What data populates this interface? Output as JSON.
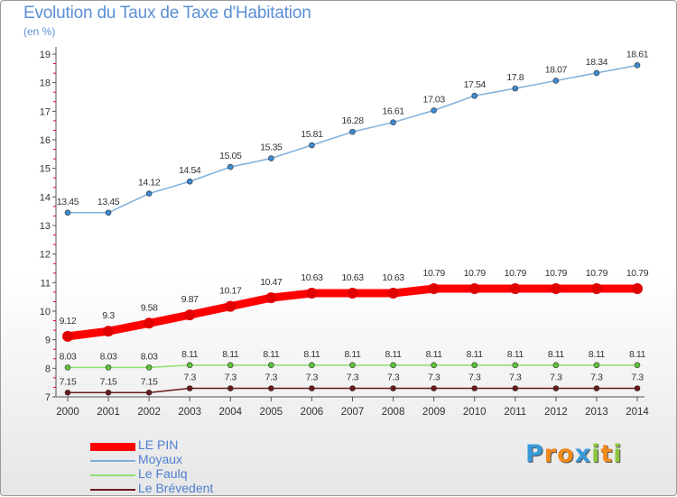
{
  "title": "Evolution du Taux de Taxe d'Habitation",
  "unit_label": "(en %)",
  "colors": {
    "title": "#5b8fd6",
    "axis": "#555555",
    "tick_red": "#e0002a"
  },
  "chart_data": {
    "type": "line",
    "x": [
      "2000",
      "2001",
      "2002",
      "2003",
      "2004",
      "2005",
      "2006",
      "2007",
      "2008",
      "2009",
      "2010",
      "2011",
      "2012",
      "2013",
      "2014"
    ],
    "ylim": [
      7,
      19
    ],
    "yticks": [
      "7",
      "8",
      "9",
      "10",
      "11",
      "12",
      "13",
      "14",
      "15",
      "16",
      "17",
      "18",
      "19"
    ],
    "grid": false,
    "legend_position": "bottom-left",
    "series": [
      {
        "name": "LE PIN",
        "color": "#ff0000",
        "marker": "#e00000",
        "width": 9,
        "values": [
          9.12,
          9.3,
          9.58,
          9.87,
          10.17,
          10.47,
          10.63,
          10.63,
          10.63,
          10.79,
          10.79,
          10.79,
          10.79,
          10.79,
          10.79
        ],
        "labels": [
          "9.12",
          "9.3",
          "9.58",
          "9.87",
          "10.17",
          "10.47",
          "10.63",
          "10.63",
          "10.63",
          "10.79",
          "10.79",
          "10.79",
          "10.79",
          "10.79",
          "10.79"
        ]
      },
      {
        "name": "Moyaux",
        "color": "#7fb0dc",
        "marker": "#3d8ad0",
        "width": 1.5,
        "values": [
          13.45,
          13.45,
          14.12,
          14.54,
          15.05,
          15.35,
          15.81,
          16.28,
          16.61,
          17.03,
          17.54,
          17.8,
          18.07,
          18.34,
          18.61
        ],
        "labels": [
          "13.45",
          "13.45",
          "14.12",
          "14.54",
          "15.05",
          "15.35",
          "15.81",
          "16.28",
          "16.61",
          "17.03",
          "17.54",
          "17.8",
          "18.07",
          "18.34",
          "18.61"
        ]
      },
      {
        "name": "Le Faulq",
        "color": "#8ee06a",
        "marker": "#5cc23a",
        "width": 1.5,
        "values": [
          8.03,
          8.03,
          8.03,
          8.11,
          8.11,
          8.11,
          8.11,
          8.11,
          8.11,
          8.11,
          8.11,
          8.11,
          8.11,
          8.11,
          8.11
        ],
        "labels": [
          "8.03",
          "8.03",
          "8.03",
          "8.11",
          "8.11",
          "8.11",
          "8.11",
          "8.11",
          "8.11",
          "8.11",
          "8.11",
          "8.11",
          "8.11",
          "8.11",
          "8.11"
        ]
      },
      {
        "name": "Le Brévedent",
        "color": "#6a1a1a",
        "marker": "#6a1a1a",
        "width": 1.5,
        "values": [
          7.15,
          7.15,
          7.15,
          7.3,
          7.3,
          7.3,
          7.3,
          7.3,
          7.3,
          7.3,
          7.3,
          7.3,
          7.3,
          7.3,
          7.3
        ],
        "labels": [
          "7.15",
          "7.15",
          "7.15",
          "7.3",
          "7.3",
          "7.3",
          "7.3",
          "7.3",
          "7.3",
          "7.3",
          "7.3",
          "7.3",
          "7.3",
          "7.3",
          "7.3"
        ]
      }
    ]
  },
  "legend": [
    {
      "label": "LE PIN",
      "color": "#ff0000",
      "thickness": 9
    },
    {
      "label": "Moyaux",
      "color": "#7fb0dc",
      "thickness": 2
    },
    {
      "label": "Le Faulq",
      "color": "#8ee06a",
      "thickness": 2
    },
    {
      "label": "Le Brévedent",
      "color": "#6a1a1a",
      "thickness": 2
    }
  ],
  "logo": {
    "letters": [
      "P",
      "r",
      "o",
      "x",
      "i",
      "t",
      "i"
    ],
    "colors": [
      "#3a9ad9",
      "#f08a1c",
      "#f08a1c",
      "#3a9ad9",
      "#8cc63f",
      "#f08a1c",
      "#8cc63f"
    ]
  }
}
